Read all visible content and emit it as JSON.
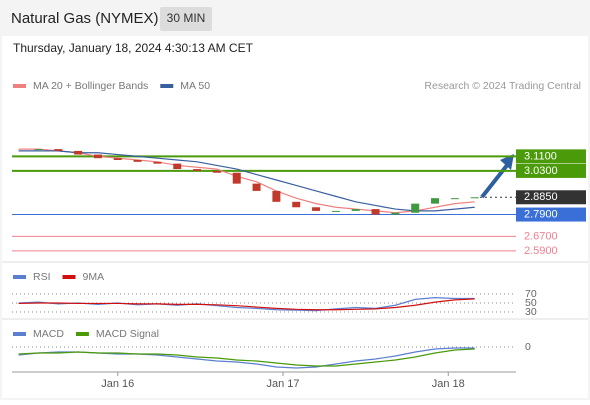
{
  "header": {
    "title": "Natural Gas (NYMEX)",
    "timeframe": "30 MIN",
    "timestamp": "Thursday, January 18, 2024 4:30:13 AM CET"
  },
  "chart_data": [
    {
      "type": "candlestick",
      "source": "Research © 2024 Trading Central",
      "x": [
        -0.6,
        -0.48,
        -0.36,
        -0.24,
        -0.12,
        0,
        0.12,
        0.24,
        0.36,
        0.48,
        0.6,
        0.72,
        0.84,
        0.96,
        1.08,
        1.2,
        1.32,
        1.44,
        1.56,
        1.68,
        1.8,
        1.92,
        2.04,
        2.16
      ],
      "close": [
        3.15,
        3.15,
        3.14,
        3.12,
        3.1,
        3.09,
        3.08,
        3.07,
        3.04,
        3.03,
        3.02,
        2.96,
        2.92,
        2.86,
        2.83,
        2.81,
        2.81,
        2.82,
        2.79,
        2.8,
        2.85,
        2.88,
        2.88,
        2.885
      ],
      "up_color": "#3f9a3f",
      "down_color": "#c0392b",
      "series": [
        {
          "name": "MA 20 + Bollinger Bands",
          "color": "#f08080",
          "values": [
            3.15,
            3.15,
            3.14,
            3.13,
            3.11,
            3.1,
            3.09,
            3.08,
            3.06,
            3.05,
            3.04,
            3.0,
            2.97,
            2.92,
            2.88,
            2.85,
            2.83,
            2.82,
            2.81,
            2.8,
            2.81,
            2.83,
            2.85,
            2.86
          ]
        },
        {
          "name": "MA 50",
          "color": "#3a5fa0",
          "values": [
            3.14,
            3.14,
            3.14,
            3.13,
            3.13,
            3.12,
            3.11,
            3.1,
            3.09,
            3.08,
            3.06,
            3.04,
            3.01,
            2.98,
            2.95,
            2.92,
            2.89,
            2.86,
            2.84,
            2.82,
            2.81,
            2.81,
            2.82,
            2.83
          ]
        }
      ],
      "levels": [
        {
          "value": 3.11,
          "label": "3.1100",
          "color": "#4a9a0a"
        },
        {
          "value": 3.03,
          "label": "3.0300",
          "color": "#4a9a0a"
        },
        {
          "value": 2.885,
          "label": "2.8850",
          "color": "#333333"
        },
        {
          "value": 2.79,
          "label": "2.7900",
          "color": "#3a6fd8"
        },
        {
          "value": 2.67,
          "label": "2.6700",
          "color": "#f08090"
        },
        {
          "value": 2.59,
          "label": "2.5900",
          "color": "#f08090"
        }
      ],
      "xlim": [
        -0.64,
        2.41
      ],
      "ylim": [
        2.54,
        3.42
      ]
    },
    {
      "type": "line",
      "x": [
        -0.6,
        -0.48,
        -0.36,
        -0.24,
        -0.12,
        0,
        0.12,
        0.24,
        0.36,
        0.48,
        0.6,
        0.72,
        0.84,
        0.96,
        1.08,
        1.2,
        1.32,
        1.44,
        1.56,
        1.68,
        1.8,
        1.92,
        2.04,
        2.16
      ],
      "series": [
        {
          "name": "RSI",
          "color": "#5b7fd0",
          "values": [
            50,
            52,
            48,
            50,
            47,
            50,
            46,
            48,
            45,
            48,
            44,
            40,
            38,
            35,
            34,
            33,
            37,
            40,
            38,
            45,
            58,
            62,
            60,
            60
          ]
        },
        {
          "name": "9MA",
          "color": "#d01010",
          "values": [
            49,
            50,
            50,
            49,
            49,
            49,
            48,
            48,
            47,
            47,
            46,
            44,
            41,
            38,
            36,
            35,
            35,
            36,
            37,
            40,
            45,
            52,
            57,
            59
          ]
        }
      ],
      "xlim": [
        -0.64,
        2.41
      ],
      "ylim": [
        0,
        100
      ],
      "yticks": [
        30,
        50,
        70
      ]
    },
    {
      "type": "line",
      "x": [
        -0.6,
        -0.48,
        -0.36,
        -0.24,
        -0.12,
        0,
        0.12,
        0.24,
        0.36,
        0.48,
        0.6,
        0.72,
        0.84,
        0.96,
        1.08,
        1.2,
        1.32,
        1.44,
        1.56,
        1.68,
        1.8,
        1.92,
        2.04,
        2.16
      ],
      "series": [
        {
          "name": "MACD",
          "color": "#5b7fd0",
          "values": [
            -0.008,
            -0.006,
            -0.005,
            -0.005,
            -0.006,
            -0.007,
            -0.007,
            -0.008,
            -0.01,
            -0.012,
            -0.014,
            -0.015,
            -0.017,
            -0.02,
            -0.021,
            -0.02,
            -0.017,
            -0.014,
            -0.012,
            -0.009,
            -0.005,
            -0.002,
            -0.001,
            -0.001
          ]
        },
        {
          "name": "MACD Signal",
          "color": "#4a9a0a",
          "values": [
            -0.007,
            -0.006,
            -0.006,
            -0.005,
            -0.006,
            -0.006,
            -0.007,
            -0.007,
            -0.008,
            -0.01,
            -0.011,
            -0.013,
            -0.014,
            -0.016,
            -0.018,
            -0.019,
            -0.019,
            -0.017,
            -0.015,
            -0.013,
            -0.01,
            -0.006,
            -0.003,
            -0.002
          ]
        }
      ],
      "xlim": [
        -0.64,
        2.41
      ],
      "ylim": [
        -0.025,
        0.008
      ],
      "yticks": [
        0
      ],
      "xticks": [
        {
          "value": 0,
          "label": "Jan 16"
        },
        {
          "value": 1,
          "label": "Jan 17"
        },
        {
          "value": 2,
          "label": "Jan 18"
        }
      ]
    }
  ]
}
